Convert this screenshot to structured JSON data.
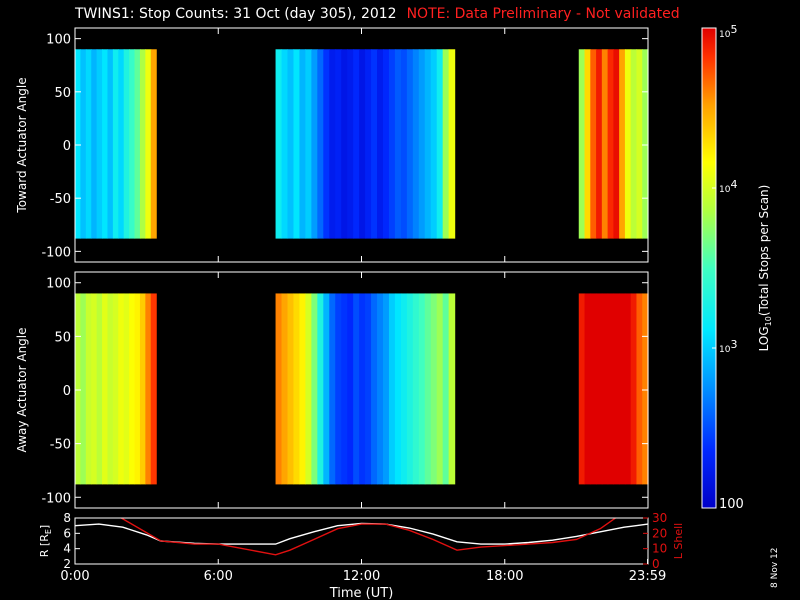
{
  "header": {
    "title": "TWINS1: Stop Counts: 31 Oct (day 305), 2012",
    "note": "NOTE: Data Preliminary - Not validated"
  },
  "side_date": "8 Nov 12",
  "colors": {
    "background": "#000000",
    "note": "#ff2020",
    "lshell": "#e01010",
    "radius": "#ffffff"
  },
  "chart_data": [
    {
      "type": "heatmap",
      "ylabel": "Toward Actuator Angle",
      "ylim": [
        -110,
        110
      ],
      "yticks": [
        -100,
        -50,
        0,
        50,
        100
      ],
      "xlim": [
        0,
        24
      ],
      "data_extent_y": [
        -88,
        90
      ],
      "segments": [
        {
          "start": 0.0,
          "end": 3.4,
          "columns": [
            1.1,
            0.95,
            1.05,
            0.9,
            1.0,
            1.1,
            0.95,
            1.2,
            1.05,
            1.3,
            1.45,
            1.6,
            1.85,
            2.1,
            2.5
          ]
        },
        {
          "start": 8.4,
          "end": 15.9,
          "columns": [
            1.2,
            1.05,
            0.95,
            1.1,
            0.9,
            1.0,
            0.8,
            0.6,
            0.4,
            0.25,
            0.3,
            0.2,
            0.25,
            0.35,
            0.2,
            0.3,
            0.4,
            0.25,
            0.35,
            0.45,
            0.55,
            0.5,
            0.6,
            0.7,
            0.8,
            0.9,
            1.0,
            1.2,
            1.8,
            2.1
          ]
        },
        {
          "start": 21.1,
          "end": 24.0,
          "columns": [
            1.8,
            2.3,
            2.7,
            2.9,
            2.6,
            2.85,
            2.95,
            2.5,
            2.1,
            1.9,
            2.0,
            1.8
          ]
        }
      ]
    },
    {
      "type": "heatmap",
      "ylabel": "Away Actuator Angle",
      "ylim": [
        -110,
        110
      ],
      "yticks": [
        -100,
        -50,
        0,
        50,
        100
      ],
      "xlim": [
        0,
        24
      ],
      "data_extent_y": [
        -88,
        90
      ],
      "segments": [
        {
          "start": 0.0,
          "end": 3.4,
          "columns": [
            1.9,
            1.8,
            1.95,
            2.0,
            1.9,
            2.05,
            1.95,
            2.0,
            2.1,
            2.05,
            2.15,
            2.2,
            2.35,
            2.6,
            2.8
          ]
        },
        {
          "start": 8.4,
          "end": 15.9,
          "columns": [
            2.6,
            2.5,
            2.4,
            2.3,
            2.2,
            2.0,
            1.7,
            1.3,
            0.9,
            0.6,
            0.45,
            0.4,
            0.35,
            0.5,
            0.4,
            0.45,
            0.6,
            0.7,
            0.8,
            1.0,
            1.1,
            1.2,
            1.3,
            1.4,
            1.5,
            1.6,
            1.7,
            1.8,
            1.6,
            1.9
          ]
        },
        {
          "start": 21.1,
          "end": 24.0,
          "columns": [
            2.9,
            3.1,
            3.3,
            3.4,
            3.35,
            3.2,
            3.3,
            3.1,
            3.0,
            2.9,
            2.7,
            2.6
          ]
        }
      ]
    },
    {
      "type": "line",
      "xlabel": "Time (UT)",
      "xlim": [
        0,
        24
      ],
      "xticks": [
        0,
        6,
        12,
        18,
        23.98
      ],
      "xtick_labels": [
        "0:00",
        "6:00",
        "12:00",
        "18:00",
        "23:59"
      ],
      "y_left": {
        "label": "R [RE]",
        "label_main": "R [R",
        "label_sub": "E",
        "label_end": "]",
        "ylim": [
          2,
          8
        ],
        "ticks": [
          2,
          4,
          6,
          8
        ]
      },
      "y_right": {
        "label": "L Shell",
        "ylim": [
          0,
          30
        ],
        "ticks": [
          0,
          10,
          20,
          30
        ]
      },
      "series": [
        {
          "key": "r",
          "axis": "left",
          "color": "#ffffff",
          "x": [
            0,
            1,
            2,
            3,
            3.6,
            5,
            6,
            8.4,
            9,
            10,
            11,
            12,
            13,
            14,
            15,
            16,
            17,
            18,
            19,
            20,
            21,
            22,
            23,
            24
          ],
          "y": [
            7.0,
            7.2,
            6.8,
            5.8,
            5.0,
            4.7,
            4.6,
            4.6,
            5.3,
            6.2,
            7.0,
            7.3,
            7.2,
            6.7,
            5.9,
            4.9,
            4.6,
            4.6,
            4.8,
            5.1,
            5.6,
            6.2,
            6.8,
            7.2
          ]
        },
        {
          "key": "lshell",
          "axis": "right",
          "color": "#e01010",
          "x": [
            0,
            1.5,
            3.6,
            5,
            6,
            8.4,
            9,
            10,
            11,
            12,
            13,
            14,
            15,
            16,
            17,
            18,
            19,
            20,
            21,
            22,
            23
          ],
          "y": [
            40,
            34,
            15,
            13,
            13,
            6,
            9,
            16,
            23,
            26,
            26,
            22,
            16,
            9,
            11,
            12,
            13,
            14,
            16,
            23,
            34
          ]
        }
      ]
    }
  ],
  "colorbar": {
    "label_main": "LOG",
    "label_sub": "10",
    "label_end": "(Total Stops per Scan)",
    "scale": "log",
    "range": [
      100,
      100000
    ],
    "ticks": [
      {
        "value": 100000,
        "base": "10",
        "exp": "5"
      },
      {
        "value": 10000,
        "base": "10",
        "exp": "4"
      },
      {
        "value": 1000,
        "base": "10",
        "exp": "3"
      },
      {
        "value": 100,
        "base": "100",
        "exp": ""
      }
    ]
  }
}
